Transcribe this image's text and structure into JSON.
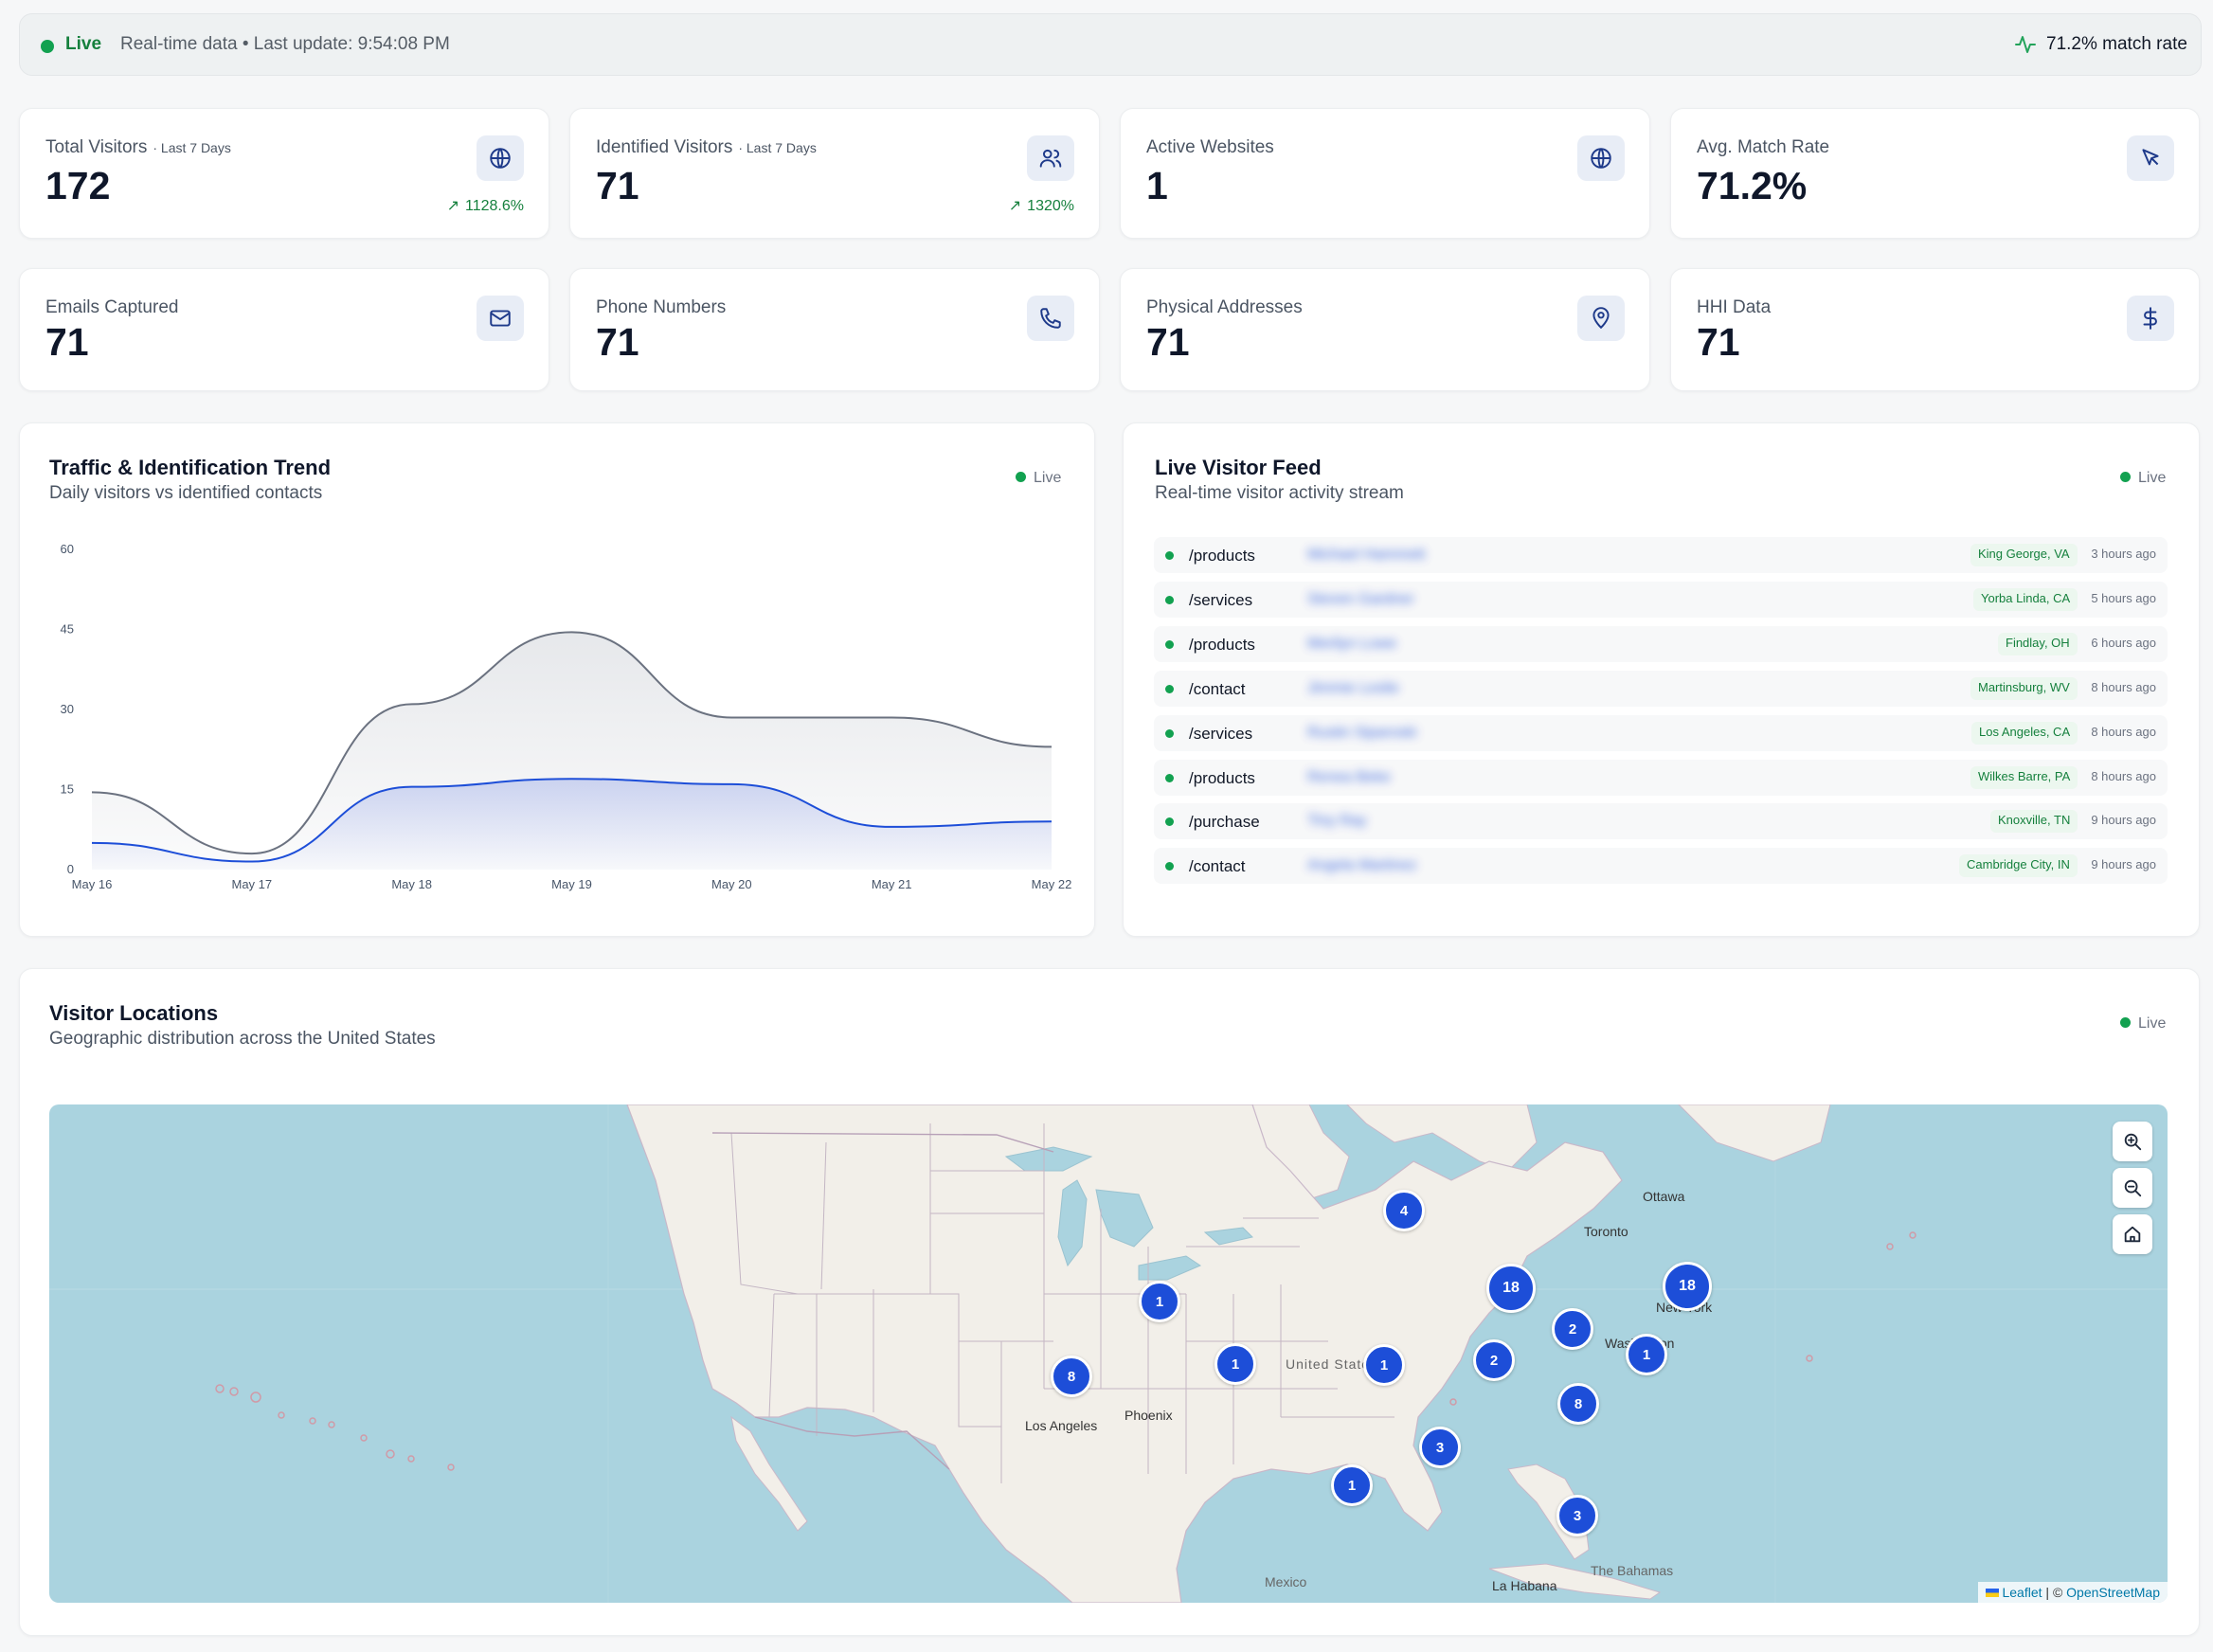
{
  "status_bar": {
    "live_label": "Live",
    "realtime_text": "Real-time data • Last update: 9:54:08 PM",
    "match_rate_text": "71.2% match rate"
  },
  "stats": [
    {
      "label": "Total Visitors",
      "sublabel": "· Last 7 Days",
      "value": "172",
      "trend": "1128.6%",
      "icon": "globe-icon"
    },
    {
      "label": "Identified Visitors",
      "sublabel": "· Last 7 Days",
      "value": "71",
      "trend": "1320%",
      "icon": "users-icon"
    },
    {
      "label": "Active Websites",
      "value": "1",
      "icon": "globe-icon"
    },
    {
      "label": "Avg. Match Rate",
      "value": "71.2%",
      "icon": "cursor-icon"
    },
    {
      "label": "Emails Captured",
      "value": "71",
      "icon": "mail-icon"
    },
    {
      "label": "Phone Numbers",
      "value": "71",
      "icon": "phone-icon"
    },
    {
      "label": "Physical Addresses",
      "value": "71",
      "icon": "map-pin-icon"
    },
    {
      "label": "HHI Data",
      "value": "71",
      "icon": "dollar-icon"
    }
  ],
  "trend_panel": {
    "title": "Traffic & Identification Trend",
    "subtitle": "Daily visitors vs identified contacts",
    "live_label": "Live"
  },
  "chart_data": {
    "type": "area",
    "categories": [
      "May 16",
      "May 17",
      "May 18",
      "May 19",
      "May 20",
      "May 21",
      "May 22"
    ],
    "series": [
      {
        "values": [
          14.5,
          3,
          31,
          44.5,
          28.5,
          28.5,
          23
        ]
      },
      {
        "values": [
          5,
          1.5,
          15.5,
          17,
          16,
          8,
          9
        ]
      }
    ],
    "ylim": [
      0,
      60
    ],
    "yticks": [
      "60",
      "45",
      "30",
      "15",
      "0"
    ],
    "colors": {
      "total": "#6b7280",
      "identified": "#1d4ed8"
    },
    "grid": false
  },
  "feed_panel": {
    "title": "Live Visitor Feed",
    "subtitle": "Real-time visitor activity stream",
    "live_label": "Live",
    "rows": [
      {
        "path": "/products",
        "name": "Michael Hammett",
        "location": "King George, VA",
        "time": "3 hours ago"
      },
      {
        "path": "/services",
        "name": "Steven Gardner",
        "location": "Yorba Linda, CA",
        "time": "5 hours ago"
      },
      {
        "path": "/products",
        "name": "Merilyn Lowe",
        "location": "Findlay, OH",
        "time": "6 hours ago"
      },
      {
        "path": "/contact",
        "name": "Jimmie Leslie",
        "location": "Martinsburg, WV",
        "time": "8 hours ago"
      },
      {
        "path": "/services",
        "name": "Rustin Siparoski",
        "location": "Los Angeles, CA",
        "time": "8 hours ago"
      },
      {
        "path": "/products",
        "name": "Renea Beke",
        "location": "Wilkes Barre, PA",
        "time": "8 hours ago"
      },
      {
        "path": "/purchase",
        "name": "Tiny Ray",
        "location": "Knoxville, TN",
        "time": "9 hours ago"
      },
      {
        "path": "/contact",
        "name": "Angela Martinez",
        "location": "Cambridge City, IN",
        "time": "9 hours ago"
      }
    ]
  },
  "map_panel": {
    "title": "Visitor Locations",
    "subtitle": "Geographic distribution across the United States",
    "live_label": "Live",
    "labels": {
      "ottawa": "Ottawa",
      "toronto": "Toronto",
      "new_york": "New York",
      "washington": "Washington",
      "united_states": "United States",
      "phoenix": "Phoenix",
      "los_angeles": "Los Angeles",
      "mexico": "Mexico",
      "la_habana": "La Habana",
      "bahamas": "The Bahamas"
    },
    "markers": [
      "4",
      "18",
      "18",
      "2",
      "1",
      "1",
      "1",
      "2",
      "1",
      "8",
      "8",
      "3",
      "1",
      "3"
    ],
    "controls": {
      "zoom_in": "zoom-in-icon",
      "zoom_out": "zoom-out-icon",
      "home": "home-icon"
    },
    "attribution": {
      "leaflet": "Leaflet",
      "separator": "| ©",
      "osm": "OpenStreetMap"
    }
  }
}
